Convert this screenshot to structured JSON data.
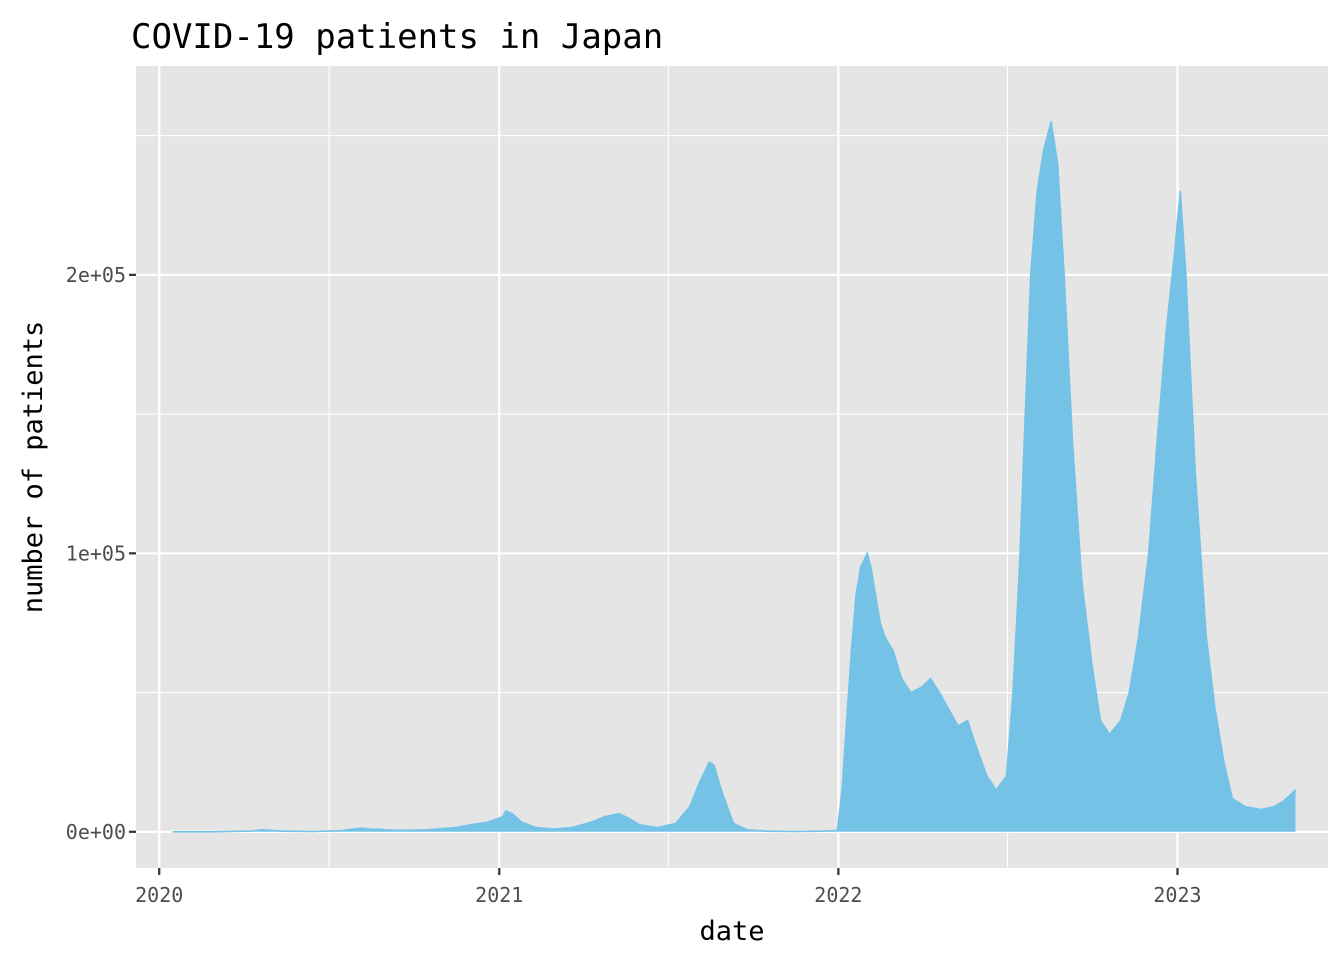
{
  "chart_data": {
    "type": "area",
    "title": "COVID-19 patients in Japan",
    "xlabel": "date",
    "ylabel": "number of patients",
    "x_ticks": [
      "2020",
      "2021",
      "2022",
      "2023"
    ],
    "y_ticks": [
      {
        "value": 0,
        "label": "0e+00"
      },
      {
        "value": 100000,
        "label": "1e+05"
      },
      {
        "value": 200000,
        "label": "2e+05"
      }
    ],
    "xlim": [
      "2019-12-07",
      "2023-06-12"
    ],
    "ylim": [
      -13000,
      275000
    ],
    "panel_background": "#e5e5e5",
    "grid": true,
    "legend": "none",
    "series": [
      {
        "color": "#74c3e6",
        "x": [
          "2020-01-16",
          "2020-03-01",
          "2020-04-10",
          "2020-04-20",
          "2020-05-15",
          "2020-06-15",
          "2020-07-15",
          "2020-08-05",
          "2020-08-15",
          "2020-09-15",
          "2020-10-15",
          "2020-11-15",
          "2020-12-01",
          "2020-12-20",
          "2021-01-05",
          "2021-01-08",
          "2021-01-15",
          "2021-01-25",
          "2021-02-10",
          "2021-03-01",
          "2021-03-20",
          "2021-04-10",
          "2021-04-25",
          "2021-05-10",
          "2021-05-20",
          "2021-06-01",
          "2021-06-20",
          "2021-07-10",
          "2021-07-25",
          "2021-08-05",
          "2021-08-15",
          "2021-08-20",
          "2021-08-28",
          "2021-09-10",
          "2021-09-25",
          "2021-10-15",
          "2021-11-15",
          "2021-12-15",
          "2021-12-31",
          "2022-01-05",
          "2022-01-10",
          "2022-01-15",
          "2022-01-20",
          "2022-01-25",
          "2022-02-01",
          "2022-02-05",
          "2022-02-10",
          "2022-02-15",
          "2022-02-20",
          "2022-03-01",
          "2022-03-10",
          "2022-03-20",
          "2022-04-01",
          "2022-04-10",
          "2022-04-20",
          "2022-04-28",
          "2022-05-10",
          "2022-05-20",
          "2022-05-30",
          "2022-06-10",
          "2022-06-20",
          "2022-07-01",
          "2022-07-08",
          "2022-07-15",
          "2022-07-20",
          "2022-07-27",
          "2022-08-03",
          "2022-08-10",
          "2022-08-18",
          "2022-08-25",
          "2022-09-01",
          "2022-09-10",
          "2022-09-20",
          "2022-10-01",
          "2022-10-10",
          "2022-10-20",
          "2022-11-01",
          "2022-11-10",
          "2022-11-20",
          "2022-12-01",
          "2022-12-10",
          "2022-12-20",
          "2022-12-28",
          "2023-01-04",
          "2023-01-10",
          "2023-01-20",
          "2023-02-01",
          "2023-02-10",
          "2023-02-20",
          "2023-03-01",
          "2023-03-15",
          "2023-04-01",
          "2023-04-15",
          "2023-04-25",
          "2023-05-08"
        ],
        "y": [
          0,
          0,
          300,
          700,
          200,
          100,
          400,
          1300,
          1000,
          500,
          700,
          1500,
          2500,
          3500,
          5500,
          7500,
          6500,
          3500,
          1500,
          1000,
          1500,
          3500,
          5500,
          6500,
          5000,
          2500,
          1500,
          3000,
          9000,
          18000,
          25000,
          24000,
          15000,
          3000,
          700,
          200,
          100,
          200,
          500,
          15000,
          40000,
          65000,
          85000,
          95000,
          100000,
          95000,
          85000,
          75000,
          70000,
          65000,
          55000,
          50000,
          52000,
          55000,
          50000,
          45000,
          38000,
          40000,
          30000,
          20000,
          15000,
          20000,
          50000,
          95000,
          140000,
          200000,
          230000,
          245000,
          255000,
          240000,
          200000,
          140000,
          90000,
          60000,
          40000,
          35000,
          40000,
          50000,
          70000,
          100000,
          140000,
          180000,
          205000,
          230000,
          200000,
          130000,
          70000,
          45000,
          25000,
          12000,
          9000,
          8000,
          9000,
          11000,
          15000
        ]
      }
    ]
  }
}
